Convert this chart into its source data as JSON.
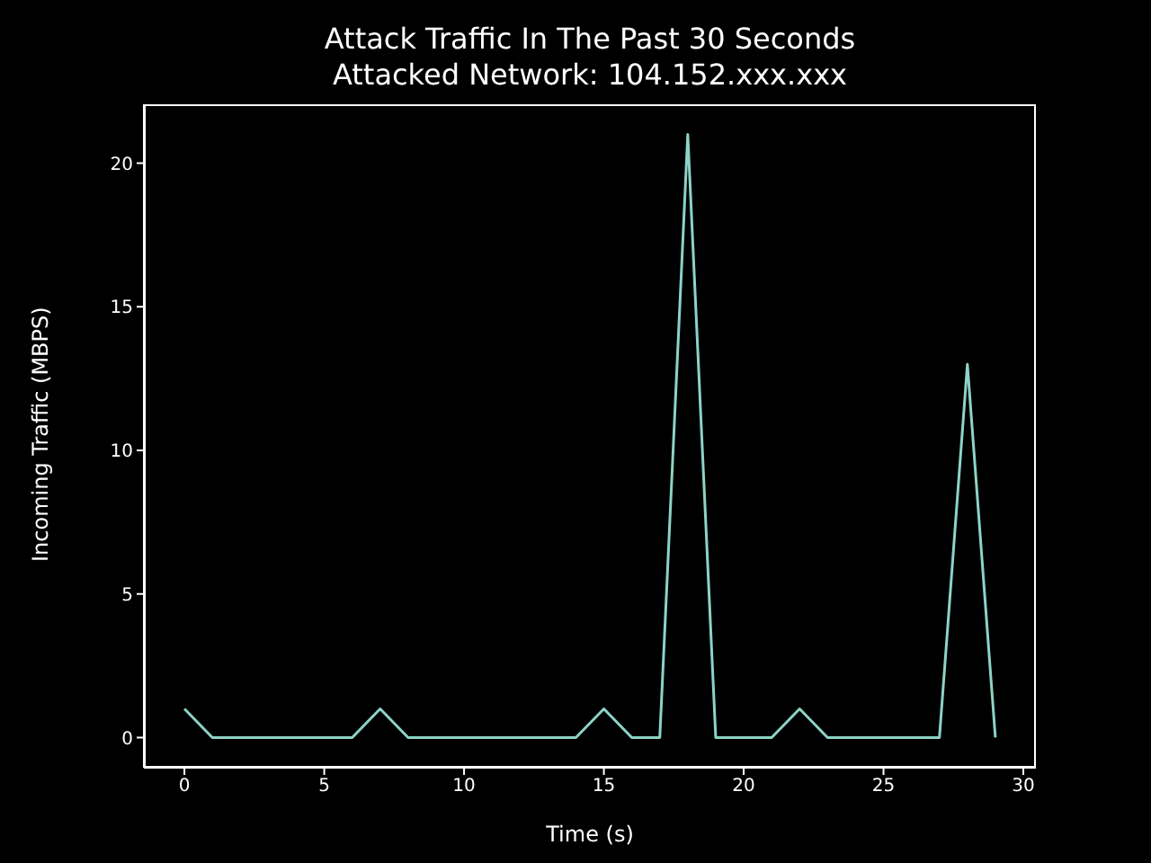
{
  "chart_data": {
    "type": "line",
    "title": "Attack Traffic In The Past 30 Seconds",
    "subtitle": "Attacked Network: 104.152.xxx.xxx",
    "xlabel": "Time (s)",
    "ylabel": "Incoming Traffic (MBPS)",
    "x": [
      0,
      1,
      2,
      3,
      4,
      5,
      6,
      7,
      8,
      9,
      10,
      11,
      12,
      13,
      14,
      15,
      16,
      17,
      18,
      19,
      20,
      21,
      22,
      23,
      24,
      25,
      26,
      27,
      28,
      29
    ],
    "series": [
      {
        "color": "#8dd3c7",
        "values": [
          1,
          0,
          0,
          0,
          0,
          0,
          0,
          1,
          0,
          0,
          0,
          0,
          0,
          0,
          0,
          1,
          0,
          0,
          21,
          0,
          0,
          0,
          1,
          0,
          0,
          0,
          0,
          0,
          13,
          0
        ]
      }
    ],
    "xlim": [
      -1.45,
      30.45
    ],
    "ylim": [
      -1.05,
      22.05
    ],
    "xticks": [
      0,
      5,
      10,
      15,
      20,
      25,
      30
    ],
    "yticks": [
      0,
      5,
      10,
      15,
      20
    ],
    "grid": false,
    "marker": "none",
    "line_style": "solid"
  }
}
